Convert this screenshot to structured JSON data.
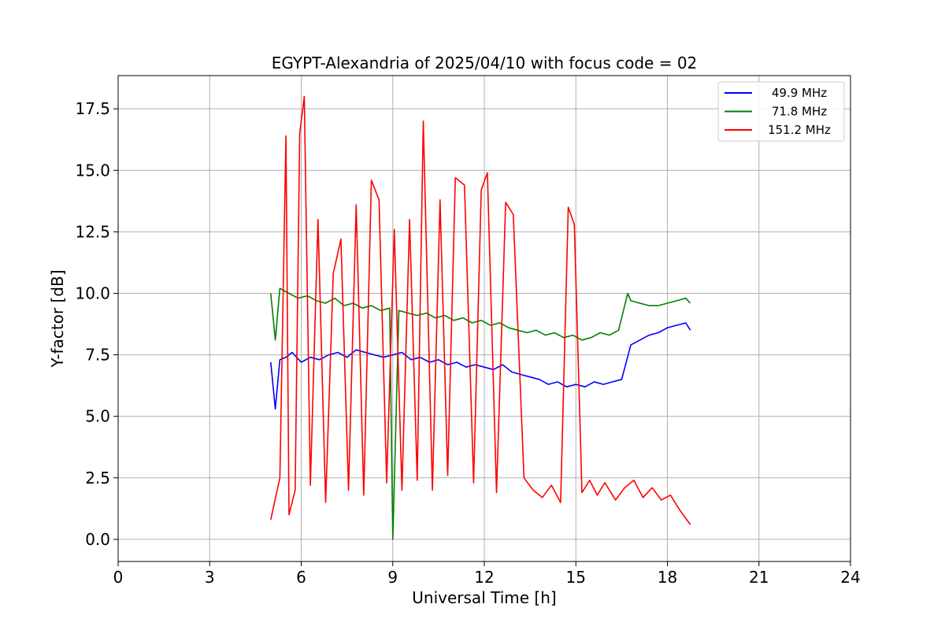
{
  "chart_data": {
    "type": "line",
    "title": "EGYPT-Alexandria of 2025/04/10 with focus code = 02",
    "xlabel": "Universal Time [h]",
    "ylabel": "Y-factor [dB]",
    "xlim": [
      0,
      24
    ],
    "ylim": [
      -0.9,
      18.85
    ],
    "xticks": [
      0,
      3,
      6,
      9,
      12,
      15,
      18,
      21,
      24
    ],
    "xtick_labels": [
      "0",
      "3",
      "6",
      "9",
      "12",
      "15",
      "18",
      "21",
      "24"
    ],
    "yticks": [
      0,
      2.5,
      5,
      7.5,
      10,
      12.5,
      15,
      17.5
    ],
    "ytick_labels": [
      "0.0",
      "2.5",
      "5.0",
      "7.5",
      "10.0",
      "12.5",
      "15.0",
      "17.5"
    ],
    "grid": true,
    "legend_position": "top-right",
    "series": [
      {
        "name": "49.9 MHz",
        "color": "#0000ff",
        "x": [
          5.0,
          5.15,
          5.3,
          5.5,
          5.7,
          6.0,
          6.3,
          6.6,
          6.9,
          7.2,
          7.5,
          7.8,
          8.1,
          8.4,
          8.7,
          9.0,
          9.3,
          9.6,
          9.9,
          10.2,
          10.5,
          10.8,
          11.1,
          11.4,
          11.7,
          12.0,
          12.3,
          12.6,
          12.9,
          13.2,
          13.5,
          13.8,
          14.1,
          14.4,
          14.7,
          15.0,
          15.3,
          15.6,
          15.9,
          16.2,
          16.5,
          16.8,
          17.1,
          17.4,
          17.7,
          18.0,
          18.3,
          18.6,
          18.75
        ],
        "y": [
          7.2,
          5.3,
          7.3,
          7.4,
          7.6,
          7.2,
          7.4,
          7.3,
          7.5,
          7.6,
          7.4,
          7.7,
          7.6,
          7.5,
          7.4,
          7.5,
          7.6,
          7.3,
          7.4,
          7.2,
          7.3,
          7.1,
          7.2,
          7.0,
          7.1,
          7.0,
          6.9,
          7.1,
          6.8,
          6.7,
          6.6,
          6.5,
          6.3,
          6.4,
          6.2,
          6.3,
          6.2,
          6.4,
          6.3,
          6.4,
          6.5,
          7.9,
          8.1,
          8.3,
          8.4,
          8.6,
          8.7,
          8.8,
          8.5
        ]
      },
      {
        "name": "71.8 MHz",
        "color": "#008000",
        "x": [
          5.0,
          5.15,
          5.3,
          5.6,
          5.9,
          6.2,
          6.5,
          6.8,
          7.1,
          7.4,
          7.7,
          8.0,
          8.3,
          8.6,
          8.9,
          9.0,
          9.2,
          9.5,
          9.8,
          10.1,
          10.4,
          10.7,
          11.0,
          11.3,
          11.6,
          11.9,
          12.2,
          12.5,
          12.8,
          13.1,
          13.4,
          13.7,
          14.0,
          14.3,
          14.6,
          14.9,
          15.2,
          15.5,
          15.8,
          16.1,
          16.4,
          16.7,
          16.8,
          17.1,
          17.4,
          17.7,
          18.0,
          18.3,
          18.6,
          18.75
        ],
        "y": [
          10.0,
          8.1,
          10.2,
          10.0,
          9.8,
          9.9,
          9.7,
          9.6,
          9.8,
          9.5,
          9.6,
          9.4,
          9.5,
          9.3,
          9.4,
          0.0,
          9.3,
          9.2,
          9.1,
          9.2,
          9.0,
          9.1,
          8.9,
          9.0,
          8.8,
          8.9,
          8.7,
          8.8,
          8.6,
          8.5,
          8.4,
          8.5,
          8.3,
          8.4,
          8.2,
          8.3,
          8.1,
          8.2,
          8.4,
          8.3,
          8.5,
          10.0,
          9.7,
          9.6,
          9.5,
          9.5,
          9.6,
          9.7,
          9.8,
          9.6
        ]
      },
      {
        "name": "151.2 MHz",
        "color": "#ff0000",
        "x": [
          5.0,
          5.3,
          5.5,
          5.6,
          5.8,
          5.95,
          6.1,
          6.3,
          6.55,
          6.8,
          7.05,
          7.3,
          7.55,
          7.8,
          8.05,
          8.3,
          8.55,
          8.8,
          9.05,
          9.3,
          9.55,
          9.8,
          10.0,
          10.3,
          10.55,
          10.8,
          11.05,
          11.35,
          11.65,
          11.9,
          12.1,
          12.4,
          12.7,
          12.95,
          13.3,
          13.6,
          13.9,
          14.2,
          14.5,
          14.75,
          14.95,
          15.2,
          15.45,
          15.7,
          15.95,
          16.3,
          16.6,
          16.9,
          17.2,
          17.5,
          17.8,
          18.1,
          18.4,
          18.75
        ],
        "y": [
          0.8,
          2.5,
          16.4,
          1.0,
          2.0,
          16.5,
          18.0,
          2.2,
          13.0,
          1.5,
          10.8,
          12.2,
          2.0,
          13.6,
          1.8,
          14.6,
          13.8,
          2.3,
          12.6,
          2.0,
          13.0,
          2.4,
          17.0,
          2.0,
          13.8,
          2.6,
          14.7,
          14.4,
          2.3,
          14.2,
          14.9,
          1.9,
          13.7,
          13.2,
          2.5,
          2.0,
          1.7,
          2.2,
          1.5,
          13.5,
          12.8,
          1.9,
          2.4,
          1.8,
          2.3,
          1.6,
          2.1,
          2.4,
          1.7,
          2.1,
          1.6,
          1.8,
          1.2,
          0.6
        ]
      }
    ]
  }
}
